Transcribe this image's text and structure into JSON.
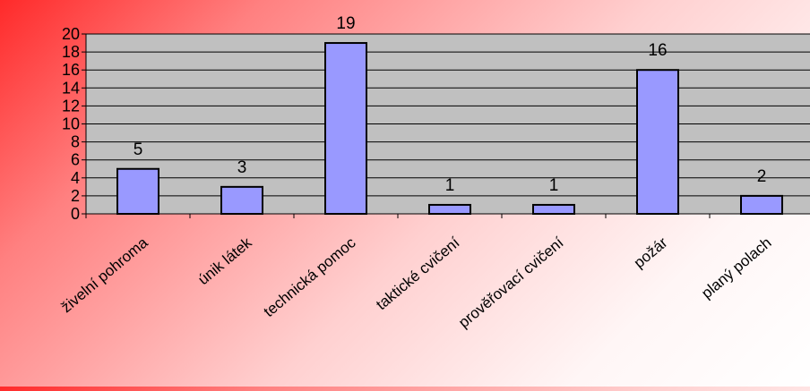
{
  "chart_data": {
    "type": "bar",
    "categories": [
      "živelní pohroma",
      "únik látek",
      "technická pomoc",
      "taktické cvičení",
      "prověřovací cvičení",
      "požár",
      "planý polach"
    ],
    "values": [
      5,
      3,
      19,
      1,
      1,
      16,
      2
    ],
    "data_labels": [
      "5",
      "3",
      "19",
      "1",
      "1",
      "16",
      "2"
    ],
    "ylim": [
      0,
      20
    ],
    "yticks": [
      "0",
      "2",
      "4",
      "6",
      "8",
      "10",
      "12",
      "14",
      "16",
      "18",
      "20"
    ],
    "grid": true,
    "legend": "none",
    "colors": {
      "bar_fill": "#9999ff",
      "bar_stroke": "#000000",
      "plot_background": "#c0c0c0",
      "grid": "#000000"
    }
  }
}
